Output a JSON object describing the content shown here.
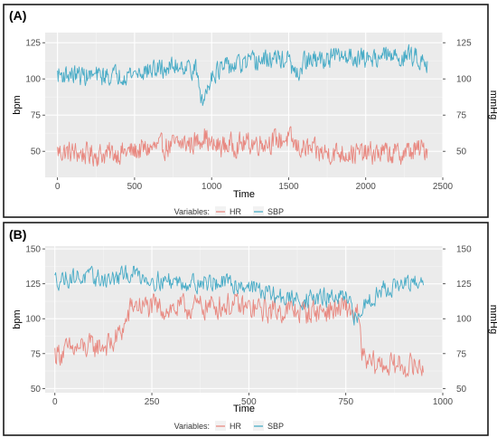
{
  "colors": {
    "HR": "#E8837A",
    "SBP": "#3EA8C4",
    "panel_bg": "#EBEBEB",
    "grid_major": "#FFFFFF",
    "frame": "#1a1a1a",
    "axis_text": "#4D4D4D"
  },
  "chart_data": [
    {
      "panel_label": "(A)",
      "type": "line",
      "xlabel": "Time",
      "ylabel_left": "bpm",
      "ylabel_right": "mmHg",
      "xlim": [
        -80,
        2500
      ],
      "ylim": [
        32,
        132
      ],
      "x_ticks": [
        0,
        500,
        1000,
        1500,
        2000,
        2500
      ],
      "y_ticks_left": [
        50,
        75,
        100,
        125
      ],
      "y_ticks_right": [
        50,
        75,
        100,
        125
      ],
      "legend_title": "Variables:",
      "grid": true,
      "legend_position": "bottom",
      "series": [
        {
          "name": "HR",
          "color_key": "HR",
          "x": [
            0,
            100,
            200,
            300,
            400,
            500,
            600,
            700,
            800,
            900,
            950,
            1000,
            1100,
            1200,
            1300,
            1400,
            1500,
            1550,
            1600,
            1700,
            1800,
            1900,
            2000,
            2100,
            2200,
            2300,
            2400
          ],
          "y": [
            50,
            49,
            48,
            48,
            49,
            50,
            52,
            53,
            55,
            56,
            62,
            53,
            54,
            55,
            56,
            57,
            59,
            53,
            52,
            49,
            49,
            49,
            48,
            49,
            48,
            50,
            52
          ],
          "noise": 7,
          "samples": 600
        },
        {
          "name": "SBP",
          "color_key": "SBP",
          "x": [
            0,
            100,
            200,
            300,
            400,
            500,
            600,
            700,
            800,
            900,
            940,
            1000,
            1100,
            1200,
            1300,
            1400,
            1500,
            1550,
            1600,
            1700,
            1800,
            1900,
            2000,
            2100,
            2200,
            2300,
            2400
          ],
          "y": [
            103,
            103,
            102,
            102,
            103,
            104,
            106,
            107,
            110,
            106,
            82,
            104,
            108,
            110,
            112,
            114,
            113,
            100,
            112,
            113,
            115,
            116,
            114,
            116,
            115,
            116,
            112
          ],
          "noise": 6,
          "samples": 600
        }
      ]
    },
    {
      "panel_label": "(B)",
      "type": "line",
      "xlabel": "Time",
      "ylabel_left": "bpm",
      "ylabel_right": "mmHg",
      "xlim": [
        -25,
        1000
      ],
      "ylim": [
        47,
        152
      ],
      "x_ticks": [
        0,
        250,
        500,
        750,
        1000
      ],
      "y_ticks_left": [
        50,
        75,
        100,
        125,
        150
      ],
      "y_ticks_right": [
        50,
        75,
        100,
        125,
        150
      ],
      "legend_title": "Variables:",
      "grid": true,
      "legend_position": "bottom",
      "series": [
        {
          "name": "HR",
          "color_key": "HR",
          "x": [
            0,
            50,
            100,
            150,
            180,
            200,
            250,
            300,
            350,
            400,
            450,
            500,
            550,
            600,
            650,
            700,
            750,
            780,
            790,
            800,
            850,
            900,
            950
          ],
          "y": [
            75,
            78,
            80,
            82,
            95,
            110,
            108,
            107,
            108,
            109,
            110,
            107,
            106,
            106,
            105,
            106,
            107,
            104,
            78,
            68,
            67,
            66,
            66
          ],
          "noise": 8,
          "samples": 480
        },
        {
          "name": "SBP",
          "color_key": "SBP",
          "x": [
            0,
            50,
            100,
            150,
            200,
            250,
            300,
            350,
            400,
            450,
            500,
            550,
            600,
            650,
            700,
            750,
            780,
            800,
            850,
            900,
            950
          ],
          "y": [
            128,
            130,
            129,
            128,
            133,
            128,
            127,
            126,
            126,
            125,
            124,
            118,
            114,
            114,
            115,
            114,
            98,
            112,
            122,
            124,
            125
          ],
          "noise": 6,
          "samples": 480
        }
      ]
    }
  ]
}
